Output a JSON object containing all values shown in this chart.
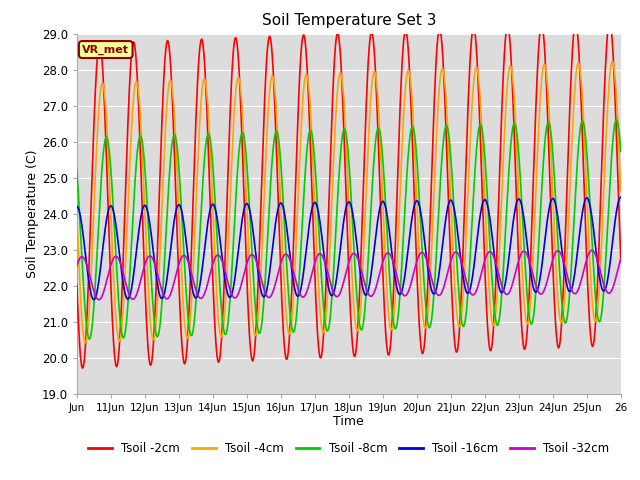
{
  "title": "Soil Temperature Set 3",
  "xlabel": "Time",
  "ylabel": "Soil Temperature (C)",
  "ylim": [
    19.0,
    29.0
  ],
  "yticks": [
    19.0,
    20.0,
    21.0,
    22.0,
    23.0,
    24.0,
    25.0,
    26.0,
    27.0,
    28.0,
    29.0
  ],
  "background_color": "#dcdcdc",
  "grid_color": "#ffffff",
  "series": [
    {
      "label": "Tsoil -2cm",
      "color": "#ff0000",
      "lw": 1.2
    },
    {
      "label": "Tsoil -4cm",
      "color": "#ffa500",
      "lw": 1.2
    },
    {
      "label": "Tsoil -8cm",
      "color": "#00cc00",
      "lw": 1.2
    },
    {
      "label": "Tsoil -16cm",
      "color": "#0000dd",
      "lw": 1.2
    },
    {
      "label": "Tsoil -32cm",
      "color": "#cc00cc",
      "lw": 1.2
    }
  ],
  "xtick_labels": [
    "Jun",
    "11Jun",
    "12Jun",
    "13Jun",
    "14Jun",
    "15Jun",
    "16Jun",
    "17Jun",
    "18Jun",
    "19Jun",
    "20Jun",
    "21Jun",
    "22Jun",
    "23Jun",
    "24Jun",
    "25Jun",
    "26"
  ],
  "annotation_text": "VR_met",
  "annotation_color": "#8b0000",
  "annotation_bg": "#ffff99",
  "annotation_border": "#8b0000"
}
